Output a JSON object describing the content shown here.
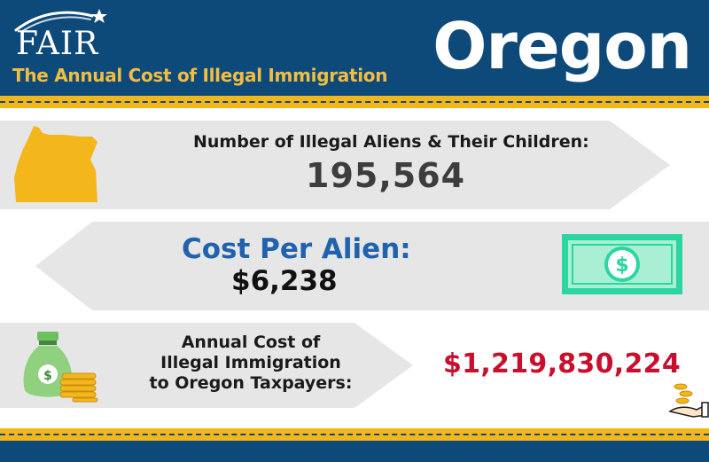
{
  "header": {
    "logo_text": "FAIR",
    "subtitle": "The Annual Cost of Illegal Immigration",
    "state": "Oregon"
  },
  "rows": [
    {
      "label": "Number of Illegal Aliens & Their Children:",
      "value": "195,564",
      "icon": "oregon-state-icon"
    },
    {
      "label": "Cost Per Alien:",
      "value": "$6,238",
      "icon": "dollar-bill-icon"
    },
    {
      "label_lines": [
        "Annual Cost of",
        "Illegal Immigration",
        "to Oregon Taxpayers:"
      ],
      "value": "$1,219,830,224",
      "icon": "money-bag-icon",
      "icon2": "coins-hand-icon"
    }
  ],
  "colors": {
    "navy": "#0d4a79",
    "gold": "#f3b71c",
    "subtitle_gold": "#f2bd42",
    "arrow_gray": "#e6e6e6",
    "blue_text": "#1f62ad",
    "red_value": "#c8102e",
    "bill_green": "#2bd6a0",
    "bag_green": "#8fd17f"
  }
}
